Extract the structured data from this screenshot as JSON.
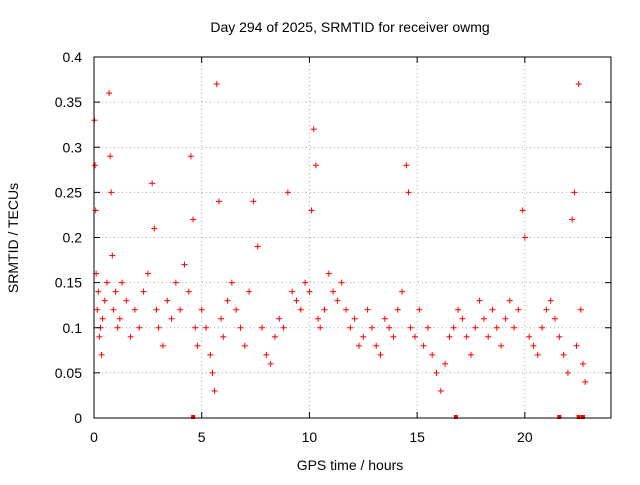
{
  "chart_data": {
    "type": "scatter",
    "title": "Day 294 of 2025, SRMTID for receiver owmg",
    "xlabel": "GPS time / hours",
    "ylabel": "SRMTID / TECUs",
    "xlim": [
      0,
      24
    ],
    "ylim": [
      0,
      0.4
    ],
    "grid": true,
    "marker": "+",
    "xticks": [
      0,
      5,
      10,
      15,
      20
    ],
    "xtick_labels": [
      "0",
      "5",
      "10",
      "15",
      "20"
    ],
    "yticks": [
      0,
      0.05,
      0.1,
      0.15,
      0.2,
      0.25,
      0.3,
      0.35,
      0.4
    ],
    "ytick_labels": [
      "0",
      "0.05",
      "0.1",
      "0.15",
      "0.2",
      "0.25",
      "0.3",
      "0.35",
      "0.4"
    ],
    "series": [
      {
        "name": "SRMTID",
        "color": "#ff0000",
        "x": [
          0.02,
          0.05,
          0.08,
          0.1,
          0.15,
          0.2,
          0.25,
          0.3,
          0.35,
          0.4,
          0.5,
          0.6,
          0.7,
          0.75,
          0.8,
          0.85,
          0.9,
          1.0,
          1.1,
          1.2,
          1.3,
          1.5,
          1.7,
          1.9,
          2.1,
          2.3,
          2.5,
          2.7,
          2.8,
          2.9,
          3.0,
          3.2,
          3.4,
          3.6,
          3.8,
          4.0,
          4.2,
          4.4,
          4.5,
          4.6,
          4.7,
          4.8,
          5.0,
          5.2,
          5.4,
          5.5,
          5.6,
          5.7,
          5.8,
          5.9,
          6.0,
          6.2,
          6.4,
          6.6,
          6.8,
          7.0,
          7.2,
          7.4,
          7.6,
          7.8,
          8.0,
          8.2,
          8.4,
          8.6,
          8.8,
          9.0,
          9.2,
          9.4,
          9.6,
          9.8,
          10.0,
          10.1,
          10.2,
          10.3,
          10.4,
          10.5,
          10.7,
          10.9,
          11.1,
          11.3,
          11.5,
          11.7,
          11.9,
          12.1,
          12.3,
          12.5,
          12.7,
          12.9,
          13.1,
          13.3,
          13.5,
          13.7,
          13.9,
          14.1,
          14.3,
          14.5,
          14.6,
          14.7,
          14.9,
          15.1,
          15.3,
          15.5,
          15.7,
          15.9,
          16.1,
          16.3,
          16.5,
          16.7,
          16.9,
          17.1,
          17.3,
          17.5,
          17.7,
          17.9,
          18.1,
          18.3,
          18.5,
          18.7,
          18.9,
          19.1,
          19.3,
          19.5,
          19.7,
          19.9,
          20.0,
          20.2,
          20.4,
          20.6,
          20.8,
          21.0,
          21.2,
          21.4,
          21.6,
          21.8,
          22.0,
          22.2,
          22.3,
          22.4,
          22.5,
          22.6,
          22.7,
          22.8
        ],
        "y": [
          0.33,
          0.28,
          0.23,
          0.16,
          0.12,
          0.14,
          0.09,
          0.1,
          0.07,
          0.11,
          0.13,
          0.15,
          0.36,
          0.29,
          0.25,
          0.18,
          0.12,
          0.14,
          0.1,
          0.11,
          0.15,
          0.13,
          0.09,
          0.12,
          0.1,
          0.14,
          0.16,
          0.26,
          0.21,
          0.12,
          0.1,
          0.08,
          0.13,
          0.11,
          0.15,
          0.12,
          0.17,
          0.14,
          0.29,
          0.22,
          0.1,
          0.08,
          0.12,
          0.1,
          0.07,
          0.05,
          0.03,
          0.37,
          0.24,
          0.11,
          0.09,
          0.13,
          0.15,
          0.12,
          0.1,
          0.08,
          0.14,
          0.24,
          0.19,
          0.1,
          0.07,
          0.06,
          0.09,
          0.11,
          0.1,
          0.25,
          0.14,
          0.13,
          0.12,
          0.15,
          0.14,
          0.23,
          0.32,
          0.28,
          0.11,
          0.1,
          0.12,
          0.16,
          0.14,
          0.13,
          0.15,
          0.12,
          0.1,
          0.11,
          0.08,
          0.09,
          0.12,
          0.1,
          0.08,
          0.07,
          0.11,
          0.1,
          0.09,
          0.12,
          0.14,
          0.28,
          0.25,
          0.1,
          0.09,
          0.12,
          0.08,
          0.1,
          0.07,
          0.05,
          0.03,
          0.06,
          0.09,
          0.1,
          0.12,
          0.11,
          0.09,
          0.07,
          0.1,
          0.13,
          0.11,
          0.09,
          0.12,
          0.1,
          0.08,
          0.11,
          0.13,
          0.1,
          0.12,
          0.23,
          0.2,
          0.09,
          0.08,
          0.07,
          0.1,
          0.12,
          0.13,
          0.11,
          0.09,
          0.07,
          0.05,
          0.22,
          0.25,
          0.08,
          0.37,
          0.12,
          0.06,
          0.04
        ],
        "zero_values_x": [
          4.6,
          16.8,
          21.6,
          22.5,
          22.7
        ]
      }
    ]
  }
}
